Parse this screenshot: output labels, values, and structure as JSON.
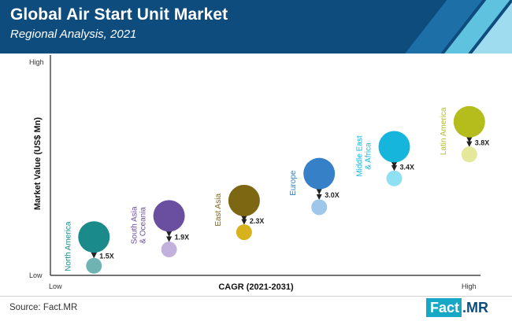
{
  "header": {
    "title": "Global Air Start Unit Market",
    "subtitle": "Regional Analysis, 2021"
  },
  "footer": {
    "source": "Source: Fact.MR",
    "logo_part1": "Fact",
    "logo_part2": ".MR"
  },
  "colors": {
    "header_bg": "#0f4c7e",
    "accent_stripe_1": "#1d6fa8",
    "accent_stripe_2": "#5fc3e0",
    "logo_cyan": "#17a8c6"
  },
  "chart_data": {
    "type": "scatter",
    "xlabel": "CAGR (2021-2031)",
    "ylabel": "Market Value (US$ Mn)",
    "x_ticks": {
      "low": "Low",
      "high": "High"
    },
    "y_ticks": {
      "low": "Low",
      "high": "High"
    },
    "grid": false,
    "series": [
      {
        "name": "North America",
        "label_lines": [
          "North America"
        ],
        "growth": "1.5X",
        "x": 1,
        "value_2021": 2.0,
        "value_2031": 0.5,
        "color": "#1a8a8a",
        "light_color": "#6fb3b3"
      },
      {
        "name": "South Asia & Oceania",
        "label_lines": [
          "South Asia",
          "& Oceania"
        ],
        "growth": "1.9X",
        "x": 2,
        "value_2021": 3.1,
        "value_2031": 1.35,
        "color": "#6a4fa0",
        "light_color": "#c1b1dc"
      },
      {
        "name": "East Asia",
        "label_lines": [
          "East Asia"
        ],
        "growth": "2.3X",
        "x": 3,
        "value_2021": 3.9,
        "value_2031": 2.25,
        "color": "#7d6712",
        "light_color": "#d7b11e"
      },
      {
        "name": "Europe",
        "label_lines": [
          "Europe"
        ],
        "growth": "3.0X",
        "x": 4,
        "value_2021": 5.3,
        "value_2031": 3.55,
        "color": "#3580c6",
        "light_color": "#9fc7ea"
      },
      {
        "name": "Middle East & Africa",
        "label_lines": [
          "Middle East",
          "& Africa"
        ],
        "growth": "3.4X",
        "x": 5,
        "value_2021": 6.7,
        "value_2031": 5.05,
        "color": "#16b6dc",
        "light_color": "#8fe0f2"
      },
      {
        "name": "Latin America",
        "label_lines": [
          "Latin America"
        ],
        "growth": "3.8X",
        "x": 6,
        "value_2021": 8.0,
        "value_2031": 6.3,
        "color": "#b5bd1c",
        "light_color": "#e3e89a"
      }
    ]
  }
}
